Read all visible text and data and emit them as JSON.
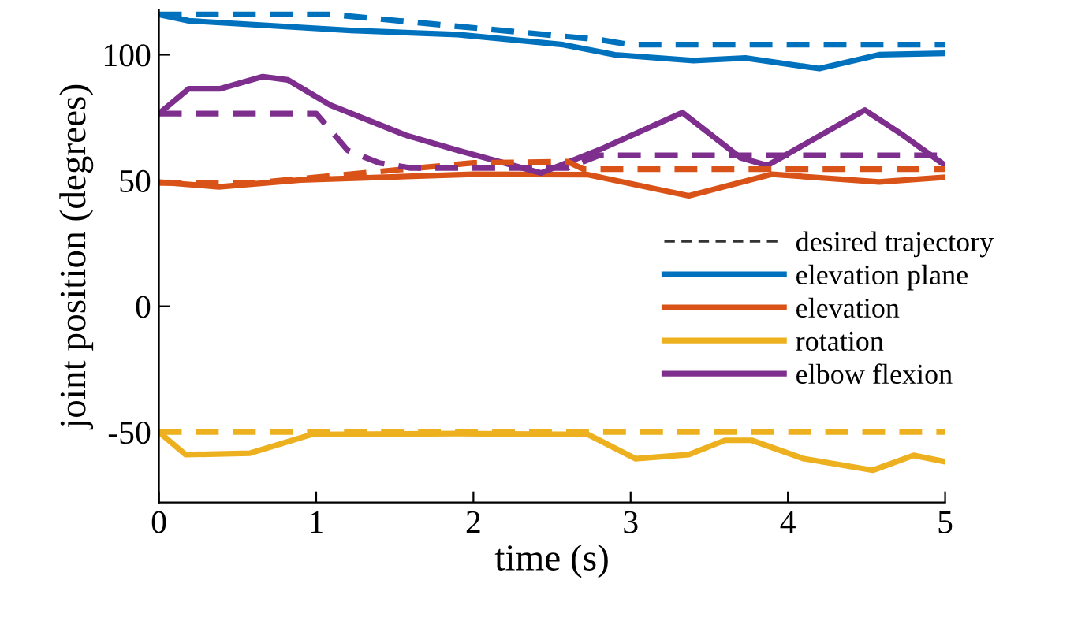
{
  "chart_data": {
    "type": "line",
    "xlabel": "time (s)",
    "ylabel": "joint position (degrees)",
    "xlim": [
      0,
      5
    ],
    "ylim": [
      -78,
      118
    ],
    "xticks": [
      0,
      1,
      2,
      3,
      4,
      5
    ],
    "yticks": [
      -50,
      0,
      50,
      100
    ],
    "grid": false,
    "legend": "right",
    "marker": "none",
    "series": [
      {
        "name": "desired trajectory",
        "color": "#333333",
        "line_style": "dashed"
      },
      {
        "name": "elevation plane",
        "color": "#0072bd",
        "line_style": "solid",
        "x": [
          0,
          0.19,
          1.22,
          1.9,
          2.57,
          2.9,
          3.4,
          3.73,
          4.2,
          4.58,
          5
        ],
        "values": [
          116,
          113.5,
          109.7,
          108,
          104,
          100,
          97.7,
          98.7,
          94.5,
          100,
          100.6
        ]
      },
      {
        "name": "elevation",
        "color": "#d95319",
        "line_style": "solid",
        "x": [
          0,
          0.38,
          0.9,
          2.0,
          2.73,
          3.37,
          3.9,
          4.58,
          5
        ],
        "values": [
          49.4,
          47.5,
          50.2,
          52.5,
          52.3,
          43.9,
          52.5,
          49.4,
          51.3
        ]
      },
      {
        "name": "rotation",
        "color": "#edb120",
        "line_style": "solid",
        "x": [
          0,
          0.17,
          0.58,
          0.97,
          1.9,
          2.73,
          3.03,
          3.37,
          3.6,
          3.77,
          4.1,
          4.54,
          4.8,
          5
        ],
        "values": [
          -50,
          -59,
          -58.4,
          -51,
          -50.6,
          -51,
          -60.6,
          -59,
          -53.3,
          -53.3,
          -60.6,
          -65.2,
          -59.3,
          -61.8
        ]
      },
      {
        "name": "elbow flexion",
        "color": "#7e2f8e",
        "line_style": "solid",
        "x": [
          0,
          0.19,
          0.39,
          0.66,
          0.82,
          1.09,
          1.57,
          1.9,
          2.43,
          2.83,
          3.33,
          3.7,
          3.87,
          4.49,
          4.71,
          5
        ],
        "values": [
          76.6,
          86.5,
          86.5,
          91.3,
          90,
          80,
          68,
          62,
          53,
          63,
          77,
          59,
          56,
          78,
          69,
          56
        ]
      },
      {
        "color": "#0072bd",
        "line_style": "dashed",
        "x": [
          0,
          1.1,
          2.8,
          3.0,
          5
        ],
        "values": [
          116,
          116,
          106,
          104,
          104
        ]
      },
      {
        "color": "#d95319",
        "line_style": "dashed",
        "x": [
          0,
          0.6,
          2.0,
          2.6,
          2.7,
          5
        ],
        "values": [
          49,
          49,
          57,
          57.5,
          54.5,
          54.5
        ]
      },
      {
        "color": "#edb120",
        "line_style": "dashed",
        "x": [
          0,
          5
        ],
        "values": [
          -50,
          -50
        ]
      },
      {
        "color": "#7e2f8e",
        "line_style": "dashed",
        "x": [
          0,
          1.0,
          1.05,
          1.2,
          1.4,
          1.6,
          2.6,
          2.8,
          5
        ],
        "values": [
          76.6,
          76.6,
          73,
          62,
          57,
          55,
          55,
          60,
          60
        ]
      }
    ]
  }
}
